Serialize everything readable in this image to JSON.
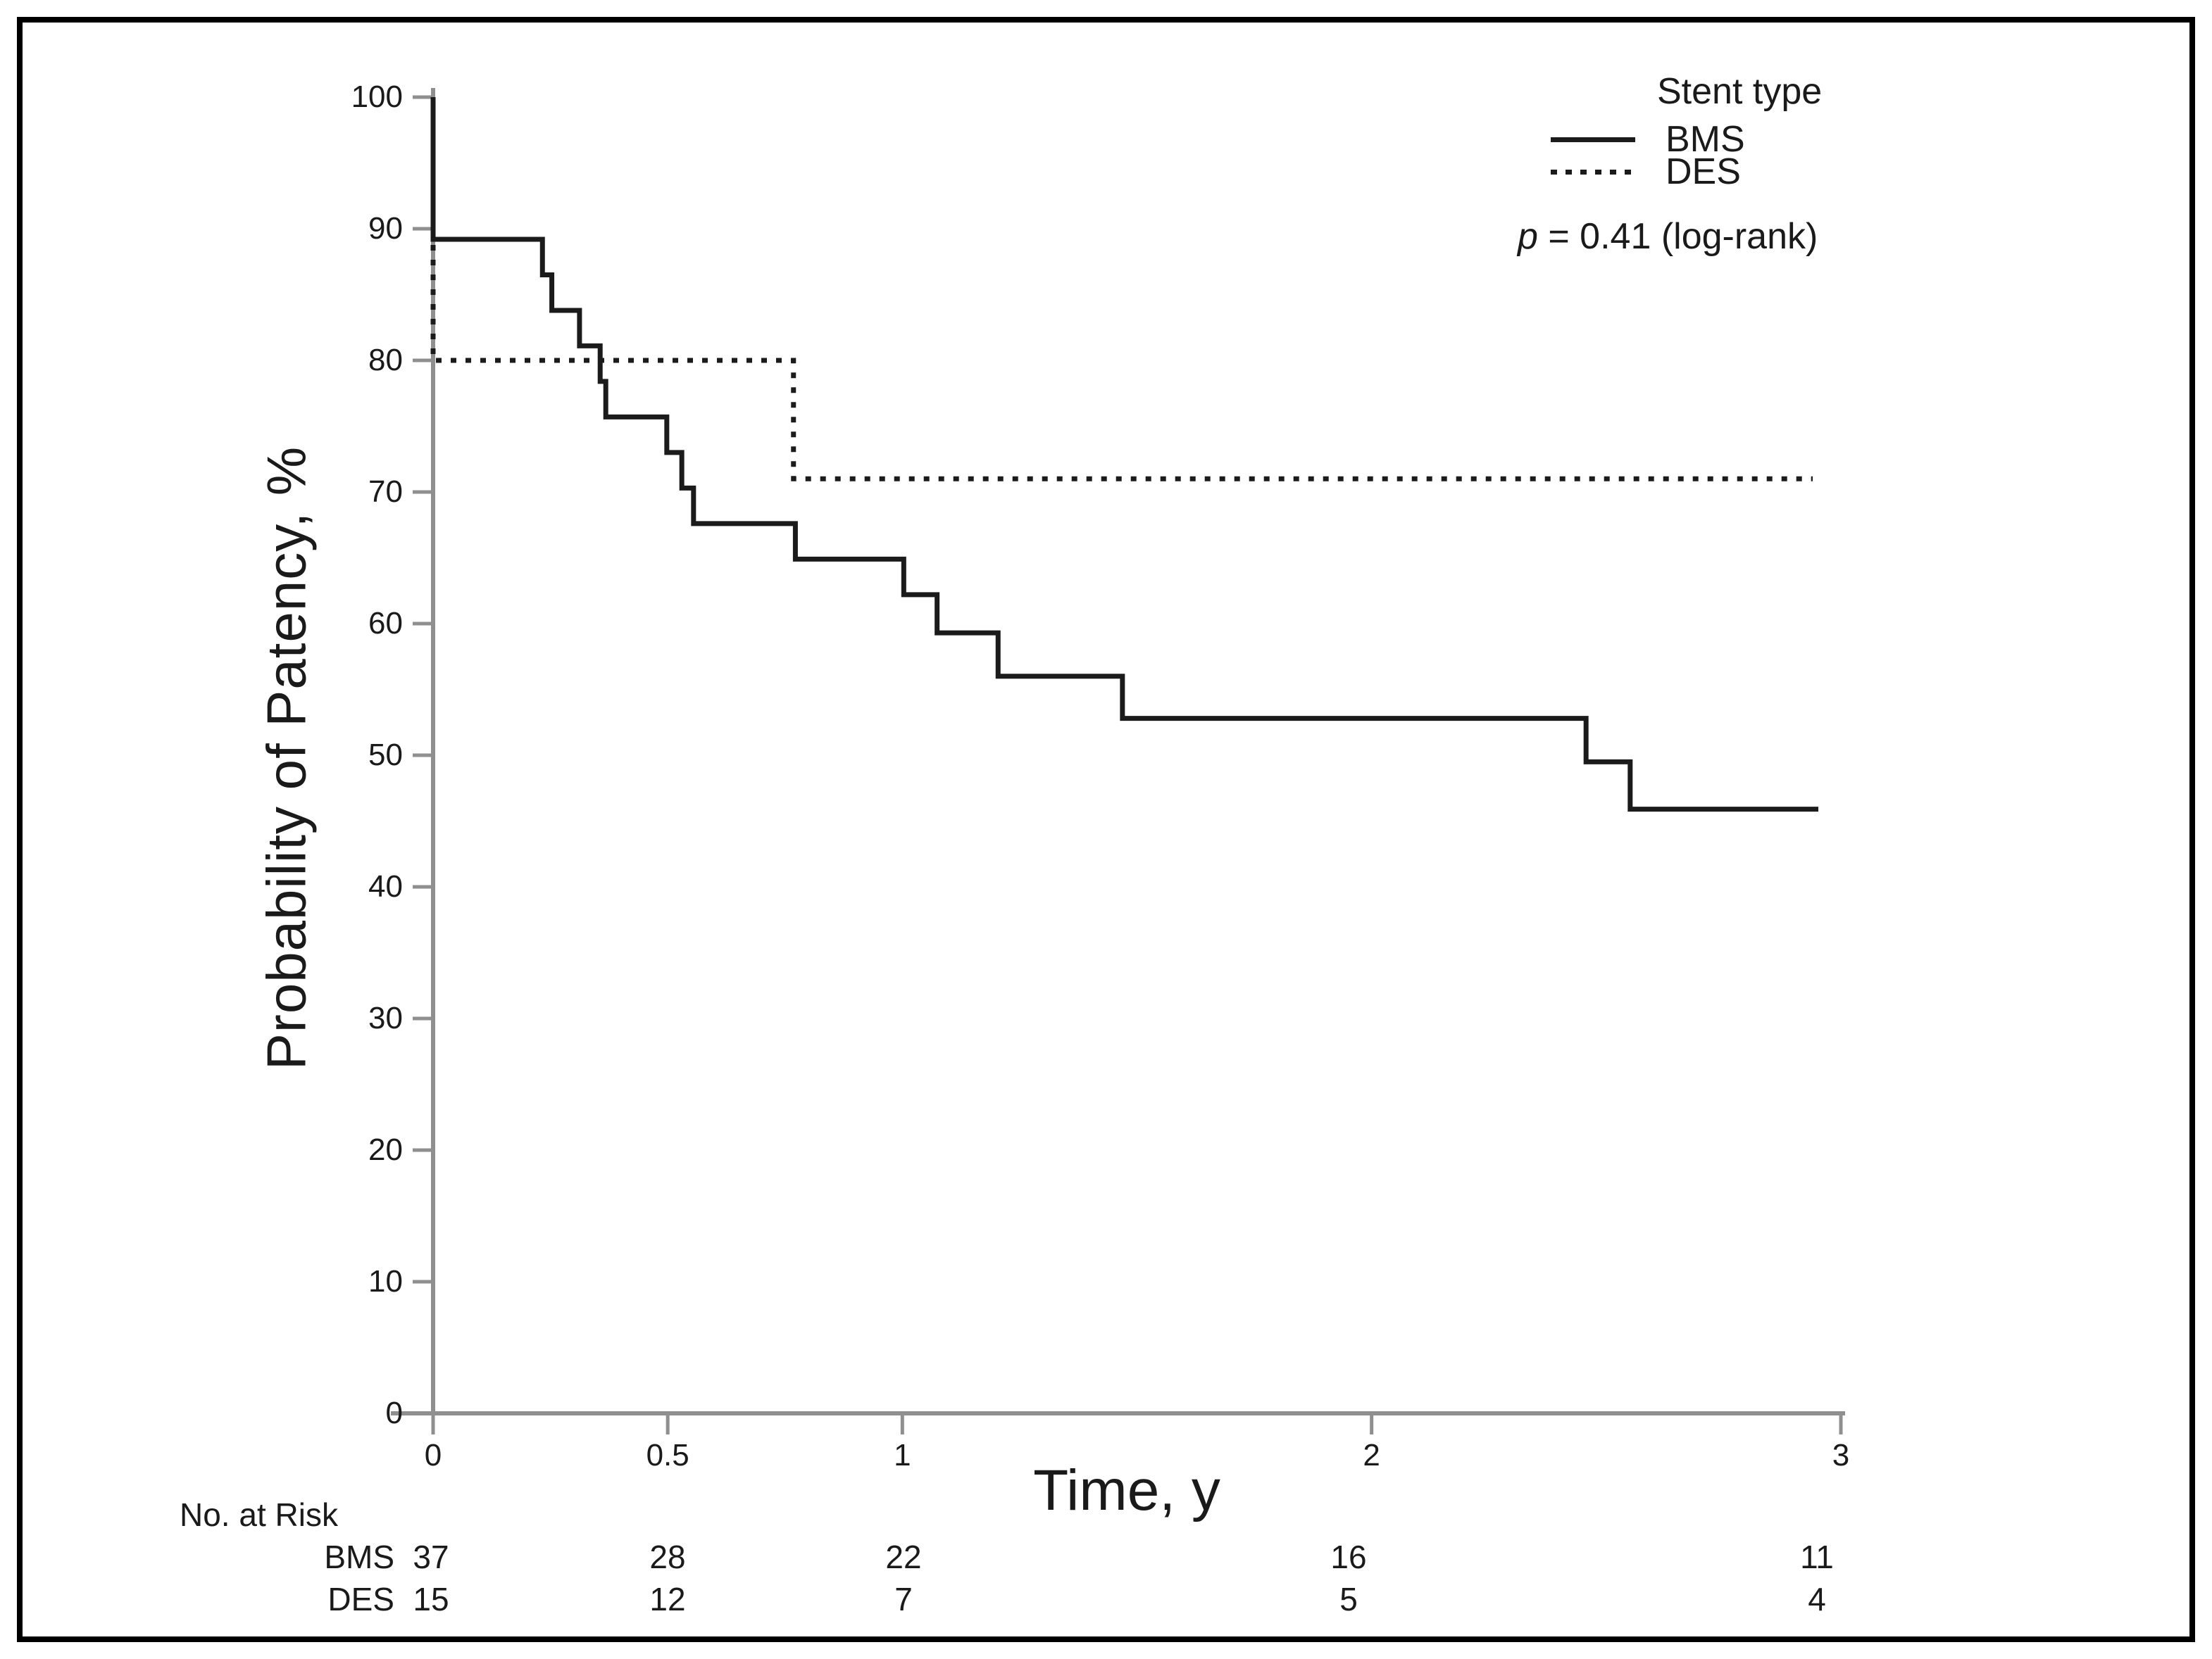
{
  "colors": {
    "background": "#ffffff",
    "frame_border": "#000000",
    "axis": "#8f8f8f",
    "curve": "#1b1b1b",
    "text": "#1a1a1a"
  },
  "chart_data": {
    "type": "line",
    "subtype": "kaplan-meier-step",
    "title": "",
    "xlabel": "Time, y",
    "ylabel": "Probability of Patency, %",
    "xlim": [
      0,
      3
    ],
    "ylim": [
      0,
      100
    ],
    "grid": false,
    "x_ticks": [
      0,
      0.5,
      1,
      2,
      3
    ],
    "y_ticks": [
      100,
      90,
      80,
      70,
      60,
      50,
      40,
      30,
      20,
      10,
      0
    ],
    "legend": {
      "title": "Stent type",
      "position": "top-right",
      "entries": [
        {
          "name": "BMS",
          "line": "solid"
        },
        {
          "name": "DES",
          "line": "dotted"
        }
      ]
    },
    "annotation": {
      "p_symbol": "p",
      "p_rest": " = 0.41 (log-rank)"
    },
    "series": [
      {
        "name": "BMS",
        "line": "solid",
        "steps": [
          [
            0,
            100
          ],
          [
            0,
            89.2
          ],
          [
            0.233,
            86.5
          ],
          [
            0.253,
            83.8
          ],
          [
            0.312,
            81.1
          ],
          [
            0.356,
            78.4
          ],
          [
            0.368,
            75.7
          ],
          [
            0.498,
            73.0
          ],
          [
            0.53,
            70.3
          ],
          [
            0.555,
            67.6
          ],
          [
            0.772,
            64.9
          ],
          [
            1.003,
            62.2
          ],
          [
            1.074,
            59.3
          ],
          [
            1.204,
            56.0
          ],
          [
            1.469,
            52.8
          ],
          [
            2.457,
            49.5
          ],
          [
            2.551,
            45.9
          ]
        ],
        "end_t": 2.952
      },
      {
        "name": "DES",
        "line": "dotted",
        "steps": [
          [
            0,
            100
          ],
          [
            0,
            80.0
          ],
          [
            0.768,
            71.0
          ]
        ],
        "end_t": 2.94
      }
    ],
    "risk_table": {
      "header": "No. at Risk",
      "times": [
        0,
        0.5,
        1,
        2,
        3
      ],
      "rows": [
        {
          "name": "BMS",
          "counts": [
            37,
            28,
            22,
            16,
            11
          ]
        },
        {
          "name": "DES",
          "counts": [
            15,
            12,
            7,
            5,
            4
          ]
        }
      ]
    }
  }
}
